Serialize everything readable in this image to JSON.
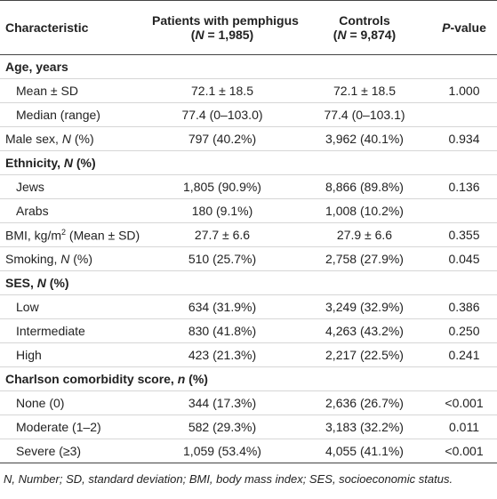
{
  "table": {
    "header": [
      "Characteristic",
      [
        "Patients with pemphigus",
        "(",
        "N",
        " = 1,985)"
      ],
      [
        "Controls",
        "(",
        "N",
        " = 9,874)"
      ],
      [
        "P",
        "-value"
      ]
    ],
    "rows": [
      [
        [
          "Age, years"
        ]
      ],
      [
        "Mean ± SD",
        "72.1 ± 18.5",
        "72.1 ± 18.5",
        "1.000"
      ],
      [
        "Median (range)",
        "77.4 (0–103.0)",
        "77.4 (0–103.1)"
      ],
      [
        [
          "Male sex, ",
          "N",
          " (%)"
        ],
        "797 (40.2%)",
        "3,962 (40.1%)",
        "0.934"
      ],
      [
        [
          "Ethnicity, ",
          "N",
          " (%)"
        ]
      ],
      [
        "Jews",
        "1,805 (90.9%)",
        "8,866 (89.8%)",
        "0.136"
      ],
      [
        "Arabs",
        "180 (9.1%)",
        "1,008 (10.2%)"
      ],
      [
        [
          "BMI, kg/m",
          "2",
          " (Mean ± SD)"
        ],
        "27.7 ± 6.6",
        "27.9 ± 6.6",
        "0.355"
      ],
      [
        [
          "Smoking, ",
          "N",
          " (%)"
        ],
        "510 (25.7%)",
        "2,758 (27.9%)",
        "0.045"
      ],
      [
        [
          "SES, ",
          "N",
          " (%)"
        ]
      ],
      [
        "Low",
        "634 (31.9%)",
        "3,249 (32.9%)",
        "0.386"
      ],
      [
        "Intermediate",
        "830 (41.8%)",
        "4,263 (43.2%)",
        "0.250"
      ],
      [
        "High",
        "423 (21.3%)",
        "2,217 (22.5%)",
        "0.241"
      ],
      [
        [
          "Charlson comorbidity score, ",
          "n",
          " (%)"
        ]
      ],
      [
        "None (0)",
        "344 (17.3%)",
        "2,636 (26.7%)",
        "<0.001"
      ],
      [
        "Moderate (1–2)",
        "582 (29.3%)",
        "3,183 (32.2%)",
        "0.011"
      ],
      [
        "Severe (≥3)",
        "1,059 (53.4%)",
        "4,055 (41.1%)",
        "<0.001"
      ]
    ]
  },
  "footnote": "N, Number; SD, standard deviation; BMI, body mass index; SES, socioeconomic status."
}
